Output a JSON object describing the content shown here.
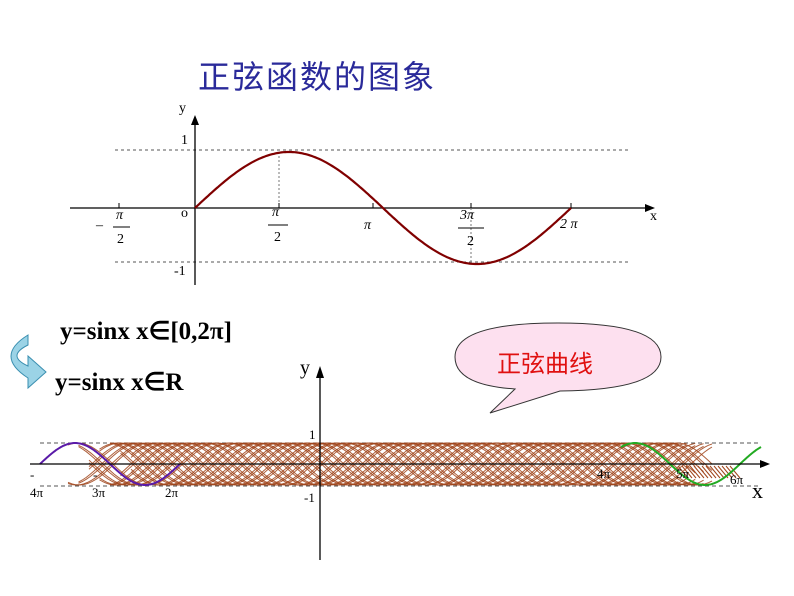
{
  "title": "正弦函数的图象",
  "top_graph": {
    "y_axis_label": "y",
    "x_axis_label": "x",
    "origin_label": "o",
    "y_tick_one": "1",
    "y_tick_neg_one": "-1",
    "x_ticks": {
      "neg_half_pi": {
        "sign": "–",
        "num": "π",
        "den": "2"
      },
      "half_pi": {
        "num": "π",
        "den": "2"
      },
      "pi": "π",
      "three_half_pi": {
        "num": "3π",
        "den": "2"
      },
      "two_pi": "2 π"
    },
    "curve_color": "#800000"
  },
  "equations": {
    "eq1": "y=sinx   x∈[0,2π]",
    "eq2": "y=sinx   x∈R"
  },
  "callout": {
    "text": "正弦曲线",
    "fill": "#fde0ef",
    "text_color": "#e01010"
  },
  "bottom_graph": {
    "y_axis_label": "y",
    "x_axis_label": "x",
    "y_tick_one": "1",
    "y_tick_neg_one": "-1",
    "left_ticks": [
      {
        "minus": "-",
        "label": "4π"
      },
      {
        "minus": "-",
        "label": "3π"
      },
      {
        "minus": "",
        "label": "2π"
      }
    ],
    "right_ticks": [
      "4π",
      "5π",
      "6π"
    ],
    "colors": {
      "left_segment": "#5a1aa8",
      "right_segment": "#22aa22",
      "band": "#a0441a"
    }
  }
}
